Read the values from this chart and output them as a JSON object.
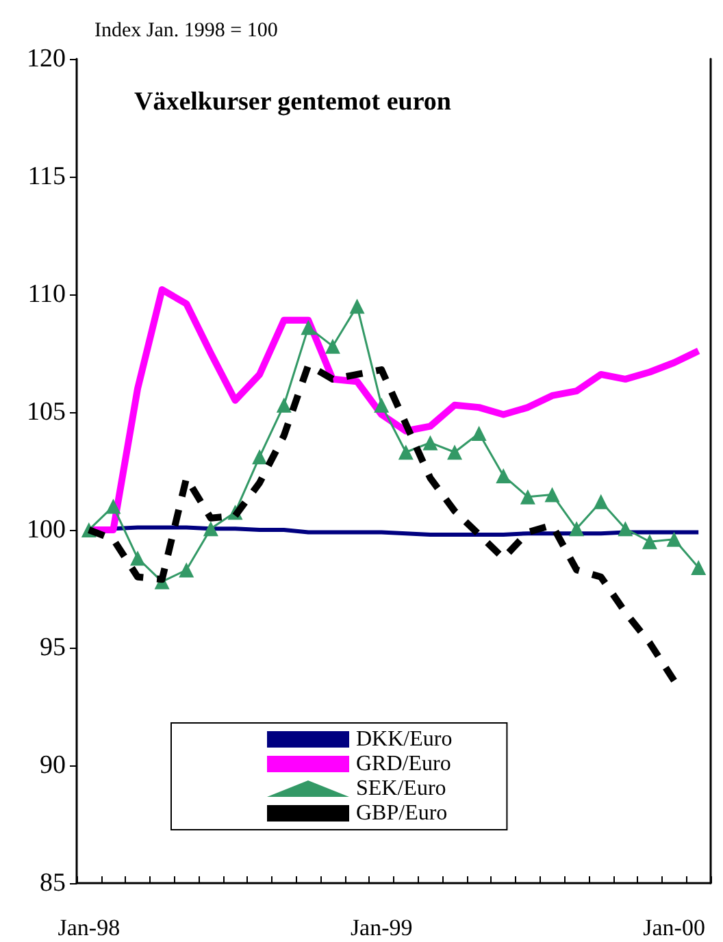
{
  "chart_data": {
    "type": "line",
    "title": "Växelkurser gentemot euron",
    "ylabel": "Index Jan. 1998 = 100",
    "categories": [
      "Jan-98",
      null,
      null,
      null,
      null,
      null,
      null,
      null,
      null,
      null,
      null,
      null,
      "Jan-99",
      null,
      null,
      null,
      null,
      null,
      null,
      null,
      null,
      null,
      null,
      null,
      "Jan-00",
      null
    ],
    "ylim": [
      85,
      120
    ],
    "yticks": [
      85,
      90,
      95,
      100,
      105,
      110,
      115,
      120
    ],
    "grid": false,
    "legend": "bottom",
    "series": [
      {
        "name": "DKK/Euro",
        "color": "#000080",
        "marker": "none",
        "line_style": "solid",
        "values": [
          100,
          100.05,
          100.1,
          100.1,
          100.1,
          100.05,
          100.05,
          100,
          100,
          99.9,
          99.9,
          99.9,
          99.9,
          99.85,
          99.8,
          99.8,
          99.8,
          99.8,
          99.85,
          99.85,
          99.85,
          99.85,
          99.9,
          99.9,
          99.9,
          99.9
        ]
      },
      {
        "name": "GRD/Euro",
        "color": "#ff00ff",
        "marker": "none",
        "line_style": "solid",
        "values": [
          100,
          100,
          106,
          110.2,
          109.6,
          107.5,
          105.5,
          106.6,
          108.9,
          108.9,
          106.4,
          106.3,
          104.9,
          104.2,
          104.4,
          105.3,
          105.2,
          104.9,
          105.2,
          105.7,
          105.9,
          106.6,
          106.4,
          106.7,
          107.1,
          107.6
        ]
      },
      {
        "name": "SEK/Euro",
        "color": "#339966",
        "marker": "triangle",
        "line_style": "solid",
        "values": [
          100,
          101,
          98.8,
          97.8,
          98.3,
          100.05,
          100.75,
          103.1,
          105.3,
          108.6,
          107.8,
          109.5,
          105.3,
          103.3,
          103.7,
          103.3,
          104.1,
          102.3,
          101.4,
          101.5,
          100.05,
          101.2,
          100.05,
          99.5,
          99.6,
          98.4
        ]
      },
      {
        "name": "GBP/Euro",
        "color": "#000000",
        "marker": "none",
        "line_style": "dashed",
        "values": [
          100,
          99.6,
          98,
          97.9,
          102.2,
          100.5,
          100.6,
          102,
          104,
          107,
          106.4,
          106.6,
          106.8,
          104.5,
          102.2,
          100.8,
          99.8,
          98.8,
          99.9,
          100.2,
          98.3,
          98,
          96.5,
          95.2,
          93.6,
          null
        ]
      }
    ]
  }
}
